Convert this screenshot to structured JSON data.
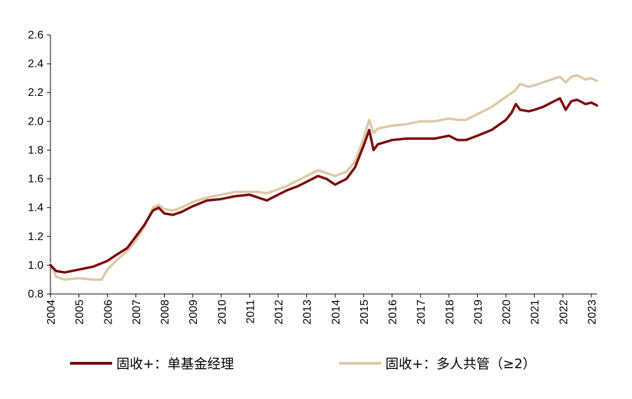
{
  "chart_data": {
    "type": "line",
    "title": "",
    "xlabel": "",
    "ylabel": "",
    "xlim": [
      2004,
      2023.2
    ],
    "ylim": [
      0.8,
      2.6
    ],
    "y_ticks": [
      "0.8",
      "1.0",
      "1.2",
      "1.4",
      "1.6",
      "1.8",
      "2.0",
      "2.2",
      "2.4",
      "2.6"
    ],
    "x_ticks": [
      "2004",
      "2005",
      "2006",
      "2007",
      "2008",
      "2009",
      "2010",
      "2011",
      "2012",
      "2013",
      "2014",
      "2015",
      "2016",
      "2017",
      "2018",
      "2019",
      "2020",
      "2021",
      "2022",
      "2023"
    ],
    "grid": false,
    "legend_position": "bottom",
    "series": [
      {
        "name": "固收+：单基金经理",
        "color": "#7B0C0C",
        "x": [
          2004.0,
          2004.2,
          2004.5,
          2005.0,
          2005.5,
          2006.0,
          2006.3,
          2006.7,
          2007.0,
          2007.3,
          2007.6,
          2007.8,
          2008.0,
          2008.3,
          2008.6,
          2009.0,
          2009.5,
          2010.0,
          2010.5,
          2011.0,
          2011.3,
          2011.6,
          2011.9,
          2012.3,
          2012.7,
          2013.0,
          2013.4,
          2013.7,
          2014.0,
          2014.4,
          2014.7,
          2015.0,
          2015.2,
          2015.35,
          2015.5,
          2016.0,
          2016.5,
          2017.0,
          2017.5,
          2018.0,
          2018.3,
          2018.6,
          2019.0,
          2019.5,
          2020.0,
          2020.2,
          2020.35,
          2020.5,
          2020.8,
          2021.0,
          2021.3,
          2021.6,
          2021.9,
          2022.1,
          2022.3,
          2022.5,
          2022.8,
          2023.0,
          2023.2
        ],
        "y": [
          1.0,
          0.96,
          0.95,
          0.97,
          0.99,
          1.03,
          1.07,
          1.12,
          1.2,
          1.28,
          1.38,
          1.4,
          1.36,
          1.35,
          1.37,
          1.41,
          1.45,
          1.46,
          1.48,
          1.49,
          1.47,
          1.45,
          1.48,
          1.52,
          1.55,
          1.58,
          1.62,
          1.6,
          1.56,
          1.6,
          1.68,
          1.83,
          1.94,
          1.8,
          1.84,
          1.87,
          1.88,
          1.88,
          1.88,
          1.9,
          1.87,
          1.87,
          1.9,
          1.94,
          2.01,
          2.06,
          2.12,
          2.08,
          2.07,
          2.08,
          2.1,
          2.13,
          2.16,
          2.08,
          2.14,
          2.15,
          2.12,
          2.13,
          2.11
        ]
      },
      {
        "name": "固收+：多人共管（≥2）",
        "color": "#DCC9A6",
        "x": [
          2004.0,
          2004.2,
          2004.5,
          2005.0,
          2005.5,
          2005.8,
          2006.0,
          2006.3,
          2006.7,
          2007.0,
          2007.3,
          2007.6,
          2007.8,
          2008.0,
          2008.3,
          2008.6,
          2009.0,
          2009.5,
          2010.0,
          2010.5,
          2011.0,
          2011.3,
          2011.6,
          2011.9,
          2012.3,
          2012.7,
          2013.0,
          2013.4,
          2013.7,
          2014.0,
          2014.4,
          2014.7,
          2015.0,
          2015.2,
          2015.35,
          2015.5,
          2016.0,
          2016.5,
          2017.0,
          2017.5,
          2018.0,
          2018.3,
          2018.6,
          2019.0,
          2019.5,
          2020.0,
          2020.3,
          2020.5,
          2020.8,
          2021.0,
          2021.3,
          2021.6,
          2021.9,
          2022.1,
          2022.3,
          2022.5,
          2022.8,
          2023.0,
          2023.2
        ],
        "y": [
          1.01,
          0.92,
          0.9,
          0.91,
          0.9,
          0.9,
          0.97,
          1.03,
          1.1,
          1.17,
          1.27,
          1.4,
          1.42,
          1.39,
          1.38,
          1.4,
          1.44,
          1.47,
          1.49,
          1.51,
          1.51,
          1.51,
          1.5,
          1.52,
          1.55,
          1.59,
          1.62,
          1.66,
          1.64,
          1.62,
          1.65,
          1.72,
          1.88,
          2.01,
          1.92,
          1.95,
          1.97,
          1.98,
          2.0,
          2.0,
          2.02,
          2.01,
          2.01,
          2.05,
          2.1,
          2.17,
          2.21,
          2.26,
          2.24,
          2.25,
          2.27,
          2.29,
          2.31,
          2.27,
          2.31,
          2.32,
          2.29,
          2.3,
          2.28
        ]
      }
    ]
  }
}
